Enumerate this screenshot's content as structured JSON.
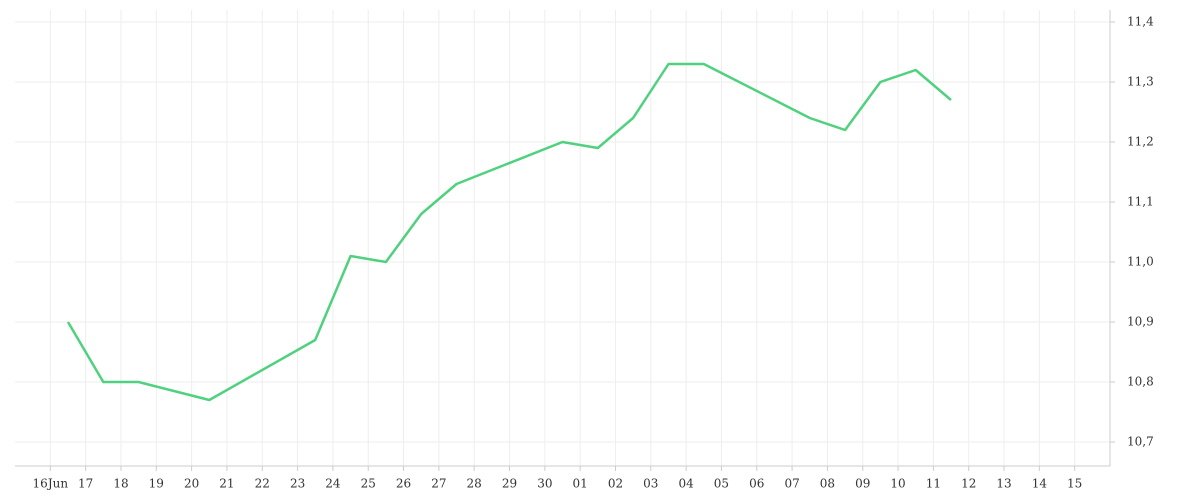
{
  "chart_data": {
    "type": "line",
    "xlim": [
      -1,
      30
    ],
    "xticks": [
      {
        "value": 0,
        "label": "16Jun"
      },
      {
        "value": 1,
        "label": "17"
      },
      {
        "value": 2,
        "label": "18"
      },
      {
        "value": 3,
        "label": "19"
      },
      {
        "value": 4,
        "label": "20"
      },
      {
        "value": 5,
        "label": "21"
      },
      {
        "value": 6,
        "label": "22"
      },
      {
        "value": 7,
        "label": "23"
      },
      {
        "value": 8,
        "label": "24"
      },
      {
        "value": 9,
        "label": "25"
      },
      {
        "value": 10,
        "label": "26"
      },
      {
        "value": 11,
        "label": "27"
      },
      {
        "value": 12,
        "label": "28"
      },
      {
        "value": 13,
        "label": "29"
      },
      {
        "value": 14,
        "label": "30"
      },
      {
        "value": 15,
        "label": "01"
      },
      {
        "value": 16,
        "label": "02"
      },
      {
        "value": 17,
        "label": "03"
      },
      {
        "value": 18,
        "label": "04"
      },
      {
        "value": 19,
        "label": "05"
      },
      {
        "value": 20,
        "label": "06"
      },
      {
        "value": 21,
        "label": "07"
      },
      {
        "value": 22,
        "label": "08"
      },
      {
        "value": 23,
        "label": "09"
      },
      {
        "value": 24,
        "label": "10"
      },
      {
        "value": 25,
        "label": "11"
      },
      {
        "value": 26,
        "label": "12"
      },
      {
        "value": 27,
        "label": "13"
      },
      {
        "value": 28,
        "label": "14"
      },
      {
        "value": 29,
        "label": "15"
      }
    ],
    "ylim": [
      10.66,
      11.42
    ],
    "yticks": [
      {
        "value": 10.7,
        "label": "10,7"
      },
      {
        "value": 10.8,
        "label": "10,8"
      },
      {
        "value": 10.9,
        "label": "10,9"
      },
      {
        "value": 11.0,
        "label": "11,0"
      },
      {
        "value": 11.1,
        "label": "11,1"
      },
      {
        "value": 11.2,
        "label": "11,2"
      },
      {
        "value": 11.3,
        "label": "11,3"
      },
      {
        "value": 11.4,
        "label": "11,4"
      }
    ],
    "grid": true,
    "x": [
      0.5,
      1.5,
      2.5,
      4.5,
      7.5,
      8.5,
      9.5,
      10.5,
      11.5,
      14.5,
      15.5,
      16.5,
      17.5,
      18.5,
      21.5,
      22.5,
      23.5,
      24.5,
      25.5
    ],
    "color": "#4fd17e",
    "values": [
      10.9,
      10.8,
      10.8,
      10.77,
      10.87,
      11.01,
      11.0,
      11.08,
      11.13,
      11.2,
      11.19,
      11.24,
      11.33,
      11.33,
      11.24,
      11.22,
      11.3,
      11.32,
      11.27
    ]
  }
}
